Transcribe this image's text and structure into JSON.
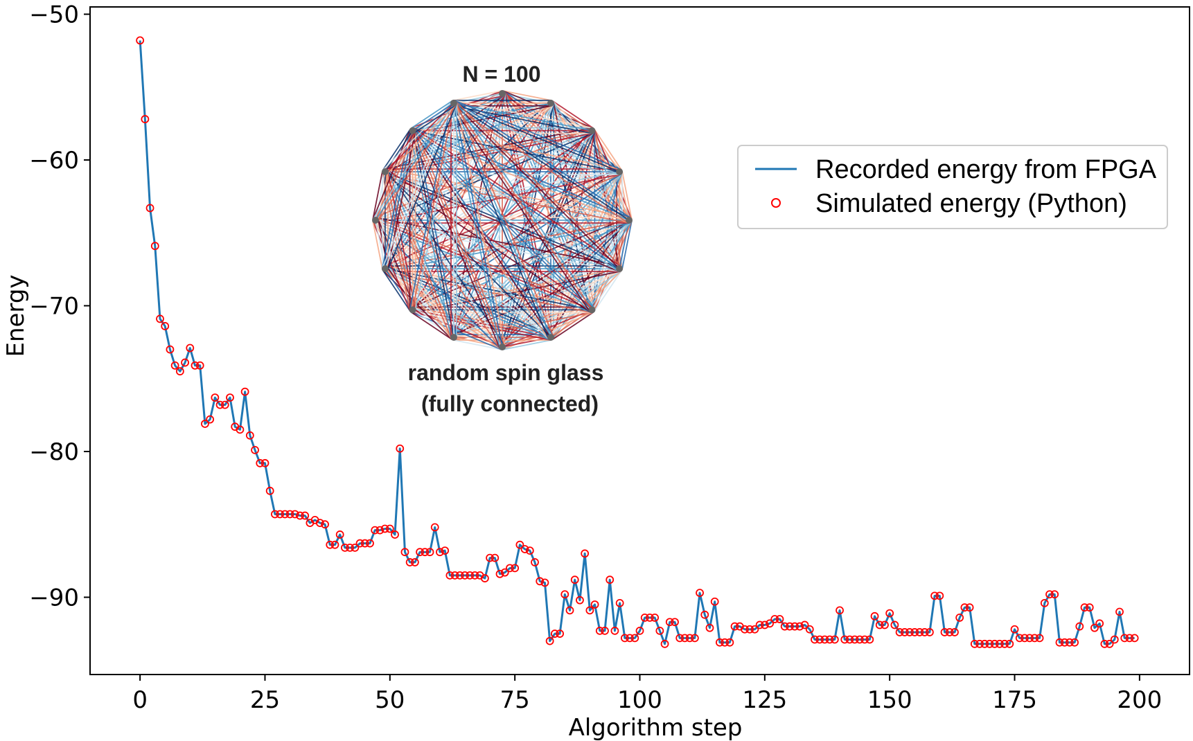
{
  "chart_data": {
    "type": "line",
    "xlabel": "Algorithm step",
    "ylabel": "Energy",
    "xlim": [
      -10,
      210
    ],
    "ylim": [
      -95.3,
      -49.5
    ],
    "xticks": [
      0,
      25,
      50,
      75,
      100,
      125,
      150,
      175,
      200
    ],
    "yticks": [
      -50,
      -60,
      -70,
      -80,
      -90
    ],
    "xtick_labels": [
      "0",
      "25",
      "50",
      "75",
      "100",
      "125",
      "150",
      "175",
      "200"
    ],
    "ytick_labels": [
      "−50",
      "−60",
      "−70",
      "−80",
      "−90"
    ],
    "grid": false,
    "legend_position": "upper-right",
    "series": [
      {
        "name": "Recorded energy from FPGA",
        "style": "line",
        "color": "#1f77b4",
        "x": [
          0,
          1,
          2,
          3,
          4,
          5,
          6,
          7,
          8,
          9,
          10,
          11,
          12,
          13,
          14,
          15,
          16,
          17,
          18,
          19,
          20,
          21,
          22,
          23,
          24,
          25,
          26,
          27,
          28,
          29,
          30,
          31,
          32,
          33,
          34,
          35,
          36,
          37,
          38,
          39,
          40,
          41,
          42,
          43,
          44,
          45,
          46,
          47,
          48,
          49,
          50,
          51,
          52,
          53,
          54,
          55,
          56,
          57,
          58,
          59,
          60,
          61,
          62,
          63,
          64,
          65,
          66,
          67,
          68,
          69,
          70,
          71,
          72,
          73,
          74,
          75,
          76,
          77,
          78,
          79,
          80,
          81,
          82,
          83,
          84,
          85,
          86,
          87,
          88,
          89,
          90,
          91,
          92,
          93,
          94,
          95,
          96,
          97,
          98,
          99,
          100,
          101,
          102,
          103,
          104,
          105,
          106,
          107,
          108,
          109,
          110,
          111,
          112,
          113,
          114,
          115,
          116,
          117,
          118,
          119,
          120,
          121,
          122,
          123,
          124,
          125,
          126,
          127,
          128,
          129,
          130,
          131,
          132,
          133,
          134,
          135,
          136,
          137,
          138,
          139,
          140,
          141,
          142,
          143,
          144,
          145,
          146,
          147,
          148,
          149,
          150,
          151,
          152,
          153,
          154,
          155,
          156,
          157,
          158,
          159,
          160,
          161,
          162,
          163,
          164,
          165,
          166,
          167,
          168,
          169,
          170,
          171,
          172,
          173,
          174,
          175,
          176,
          177,
          178,
          179,
          180,
          181,
          182,
          183,
          184,
          185,
          186,
          187,
          188,
          189,
          190,
          191,
          192,
          193,
          194,
          195,
          196,
          197,
          198,
          199
        ],
        "y": [
          -51.8,
          -57.2,
          -63.3,
          -65.9,
          -70.9,
          -71.4,
          -73.0,
          -74.1,
          -74.5,
          -73.9,
          -72.9,
          -74.1,
          -74.1,
          -78.1,
          -77.8,
          -76.3,
          -76.8,
          -76.8,
          -76.3,
          -78.3,
          -78.5,
          -75.9,
          -78.9,
          -79.9,
          -80.8,
          -80.8,
          -82.7,
          -84.3,
          -84.3,
          -84.3,
          -84.3,
          -84.3,
          -84.4,
          -84.4,
          -84.9,
          -84.7,
          -84.9,
          -85.0,
          -86.4,
          -86.4,
          -85.7,
          -86.6,
          -86.6,
          -86.6,
          -86.3,
          -86.3,
          -86.3,
          -85.4,
          -85.4,
          -85.3,
          -85.3,
          -85.7,
          -79.8,
          -86.9,
          -87.6,
          -87.6,
          -86.9,
          -86.9,
          -86.9,
          -85.2,
          -86.9,
          -86.8,
          -88.5,
          -88.5,
          -88.5,
          -88.5,
          -88.5,
          -88.5,
          -88.5,
          -88.7,
          -87.3,
          -87.3,
          -88.4,
          -88.3,
          -88.0,
          -88.0,
          -86.4,
          -86.7,
          -86.8,
          -87.6,
          -88.9,
          -89.0,
          -93.0,
          -92.5,
          -92.5,
          -89.8,
          -90.9,
          -88.8,
          -90.2,
          -87.0,
          -90.9,
          -90.5,
          -92.3,
          -92.3,
          -88.8,
          -92.3,
          -90.4,
          -92.8,
          -92.8,
          -92.8,
          -92.3,
          -91.4,
          -91.4,
          -91.4,
          -92.3,
          -93.2,
          -91.7,
          -91.7,
          -92.8,
          -92.8,
          -92.8,
          -92.8,
          -89.7,
          -91.2,
          -92.1,
          -90.3,
          -93.1,
          -93.1,
          -93.1,
          -92.0,
          -92.0,
          -92.2,
          -92.2,
          -92.2,
          -91.9,
          -91.9,
          -91.8,
          -91.5,
          -91.5,
          -92.0,
          -92.0,
          -92.0,
          -92.0,
          -91.9,
          -92.2,
          -92.9,
          -92.9,
          -92.9,
          -92.9,
          -92.9,
          -90.9,
          -92.9,
          -92.9,
          -92.9,
          -92.9,
          -92.9,
          -92.9,
          -91.3,
          -91.9,
          -91.9,
          -91.1,
          -91.9,
          -92.4,
          -92.4,
          -92.4,
          -92.4,
          -92.4,
          -92.4,
          -92.4,
          -89.9,
          -89.9,
          -92.4,
          -92.4,
          -92.4,
          -91.4,
          -90.7,
          -90.7,
          -93.2,
          -93.2,
          -93.2,
          -93.2,
          -93.2,
          -93.2,
          -93.2,
          -93.2,
          -92.2,
          -92.8,
          -92.8,
          -92.8,
          -92.8,
          -92.8,
          -90.4,
          -89.8,
          -89.8,
          -93.1,
          -93.1,
          -93.1,
          -93.1,
          -92.0,
          -90.7,
          -90.7,
          -92.1,
          -91.8,
          -93.2,
          -93.2,
          -92.9,
          -91.0,
          -92.8,
          -92.8,
          -92.8
        ]
      },
      {
        "name": "Simulated energy (Python)",
        "style": "markers",
        "color": "#ff0000",
        "same_values_as": "Recorded energy from FPGA"
      }
    ],
    "inset": {
      "title": "N = 100",
      "caption_line1": "random spin glass",
      "caption_line2": "(fully connected)",
      "node_count_drawn": 16,
      "edge_colors": [
        "#08306b",
        "#2166ac",
        "#4393c3",
        "#92c5de",
        "#d1e5f0",
        "#fddbc7",
        "#f4a582",
        "#d6604d",
        "#b2182b",
        "#67001f"
      ]
    }
  }
}
